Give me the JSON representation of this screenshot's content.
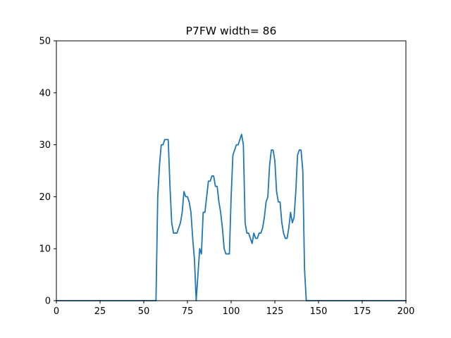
{
  "chart_data": {
    "type": "line",
    "title": "P7FW width= 86",
    "xlabel": "",
    "ylabel": "",
    "xlim": [
      0,
      200
    ],
    "ylim": [
      0,
      50
    ],
    "xticks": [
      0,
      25,
      50,
      75,
      100,
      125,
      150,
      175,
      200
    ],
    "yticks": [
      0,
      10,
      20,
      30,
      40,
      50
    ],
    "grid": false,
    "legend": "none",
    "color": "#1f77b4",
    "series": [
      {
        "x": [
          0,
          57,
          58,
          59,
          60,
          61,
          62,
          63,
          64,
          65,
          66,
          67,
          68,
          69,
          70,
          71,
          72,
          73,
          74,
          75,
          76,
          77,
          78,
          79,
          80,
          81,
          82,
          83,
          84,
          85,
          86,
          87,
          88,
          89,
          90,
          91,
          92,
          93,
          94,
          95,
          96,
          97,
          98,
          99,
          100,
          101,
          102,
          103,
          104,
          105,
          106,
          107,
          108,
          109,
          110,
          111,
          112,
          113,
          114,
          115,
          116,
          117,
          118,
          119,
          120,
          121,
          122,
          123,
          124,
          125,
          126,
          127,
          128,
          129,
          130,
          131,
          132,
          133,
          134,
          135,
          136,
          137,
          138,
          139,
          140,
          141,
          142,
          143,
          200
        ],
        "y": [
          0,
          0,
          20,
          26,
          30,
          30,
          31,
          31,
          31,
          22,
          15,
          13,
          13,
          13,
          14,
          15,
          17,
          21,
          20,
          20,
          19,
          17,
          12,
          8,
          0,
          5,
          10,
          9,
          17,
          17,
          20,
          23,
          23,
          24,
          24,
          22,
          22,
          19,
          17,
          14,
          10,
          9,
          9,
          9,
          20,
          28,
          29,
          30,
          30,
          31,
          32,
          30,
          15,
          13,
          13,
          12,
          11,
          13,
          12,
          12,
          13,
          13,
          14,
          16,
          19,
          20,
          26,
          29,
          29,
          27,
          21,
          19,
          19,
          15,
          13,
          12,
          12,
          14,
          17,
          15,
          16,
          21,
          28,
          29,
          29,
          25,
          6,
          0,
          0
        ]
      }
    ]
  }
}
